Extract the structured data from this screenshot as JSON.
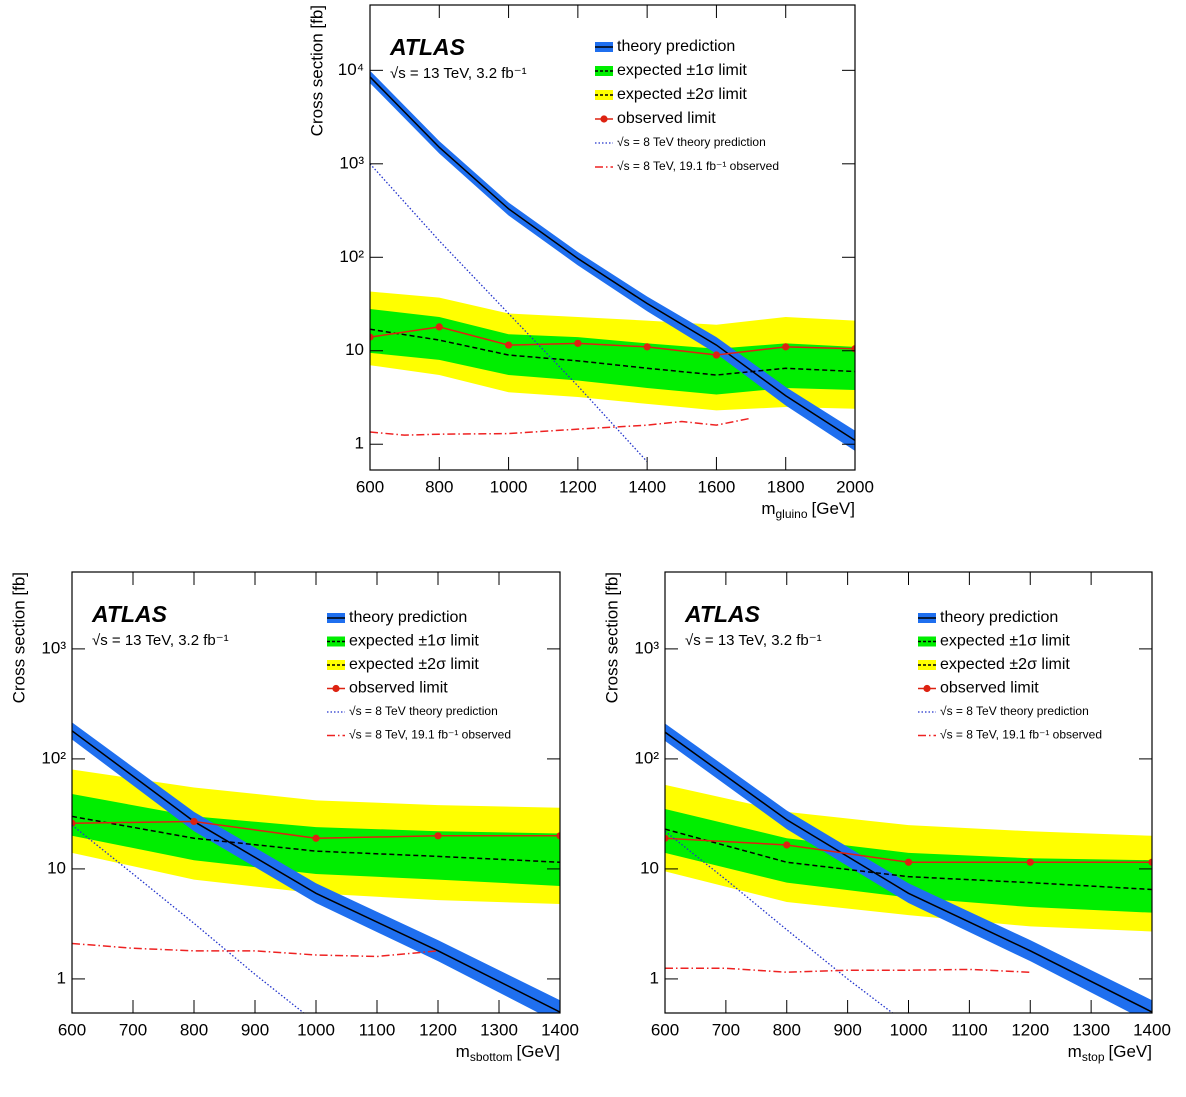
{
  "chart_data": [
    {
      "type": "line",
      "log_y": true,
      "grid": false,
      "legend": "top-right",
      "y_label": "Cross section [fb]",
      "x_label": "m",
      "x_label_subscript": "gluino",
      "x_label_unit": "[GeV]",
      "annotations": [
        "ATLAS",
        "√s = 13 TeV, 3.2 fb⁻¹"
      ],
      "xlim": [
        600,
        2000
      ],
      "xticks": [
        600,
        800,
        1000,
        1200,
        1400,
        1600,
        1800,
        2000
      ],
      "ylim": [
        0.53,
        50000
      ],
      "yticks": [
        1,
        10,
        {
          "value": 100,
          "label": "10²"
        },
        {
          "value": 1000,
          "label": "10³"
        },
        {
          "value": 10000,
          "label": "10⁴"
        }
      ],
      "series": [
        {
          "name": "theory prediction",
          "color": "#1f6fef",
          "line_color": "#000000",
          "line_style": "solid",
          "x": [
            600,
            800,
            1000,
            1200,
            1400,
            1600,
            1800,
            2000
          ],
          "values": [
            8500,
            1500,
            330,
            97,
            32,
            11.5,
            3.3,
            1.1
          ],
          "lower": [
            7300,
            1290,
            280,
            82,
            26.5,
            9.3,
            2.6,
            0.85
          ],
          "upper": [
            9900,
            1750,
            385,
            114,
            38,
            14,
            4.1,
            1.4
          ]
        },
        {
          "name": "expected ±1σ limit",
          "color": "#00ee00",
          "line_color": "#000000",
          "line_style": "dashed",
          "x": [
            600,
            800,
            1000,
            1200,
            1400,
            1600,
            1800,
            2000
          ],
          "values": [
            17,
            13,
            9,
            7.8,
            6.5,
            5.5,
            6.5,
            6
          ],
          "lower": [
            9.5,
            8,
            5.5,
            4.8,
            4,
            3.4,
            4,
            3.8
          ],
          "upper": [
            28,
            23,
            15,
            14,
            12,
            10.5,
            12,
            11
          ]
        },
        {
          "name": "expected ±2σ limit",
          "color": "#ffff00",
          "line_color": "#000000",
          "line_style": "dashed",
          "x": [
            600,
            800,
            1000,
            1200,
            1400,
            1600,
            1800,
            2000
          ],
          "lower": [
            7,
            5.5,
            3.6,
            3.2,
            2.7,
            2.3,
            2.5,
            2.4
          ],
          "upper": [
            43,
            37,
            25,
            23,
            21,
            19,
            23,
            21
          ]
        },
        {
          "name": "observed limit",
          "color": "#dd2211",
          "line_style": "solid",
          "markers": true,
          "x": [
            600,
            800,
            1000,
            1200,
            1400,
            1600,
            1800,
            2000
          ],
          "values": [
            14,
            18,
            11.5,
            12,
            11,
            9,
            11,
            10.5
          ]
        },
        {
          "name": "√s = 8 TeV theory prediction",
          "color": "#2233cc",
          "line_style": "dotted",
          "x": [
            600,
            800,
            1000,
            1200,
            1400
          ],
          "values": [
            1000,
            150,
            25,
            4.2,
            0.65
          ]
        },
        {
          "name": "√s = 8 TeV, 19.1 fb⁻¹ observed",
          "color": "#ee2222",
          "line_style": "dashdot",
          "x": [
            600,
            700,
            800,
            1000,
            1200,
            1400,
            1500,
            1600,
            1700
          ],
          "values": [
            1.35,
            1.25,
            1.28,
            1.3,
            1.45,
            1.6,
            1.75,
            1.6,
            1.9
          ]
        }
      ]
    },
    {
      "type": "line",
      "log_y": true,
      "grid": false,
      "legend": "top-right",
      "y_label": "Cross section [fb]",
      "x_label": "m",
      "x_label_subscript": "sbottom",
      "x_label_unit": "[GeV]",
      "annotations": [
        "ATLAS",
        "√s = 13 TeV, 3.2 fb⁻¹"
      ],
      "xlim": [
        600,
        1400
      ],
      "xticks": [
        600,
        700,
        800,
        900,
        1000,
        1100,
        1200,
        1300,
        1400
      ],
      "ylim": [
        0.49,
        5000
      ],
      "yticks": [
        1,
        10,
        {
          "value": 100,
          "label": "10²"
        },
        {
          "value": 1000,
          "label": "10³"
        }
      ],
      "series": [
        {
          "name": "theory prediction",
          "color": "#1f6fef",
          "line_color": "#000000",
          "line_style": "solid",
          "x": [
            600,
            800,
            1000,
            1200,
            1400
          ],
          "values": [
            180,
            27,
            6,
            1.8,
            0.5
          ],
          "lower": [
            150,
            22,
            4.9,
            1.45,
            0.39
          ],
          "upper": [
            215,
            33,
            7.4,
            2.25,
            0.64
          ]
        },
        {
          "name": "expected ±1σ limit",
          "color": "#00ee00",
          "line_color": "#000000",
          "line_style": "dashed",
          "x": [
            600,
            800,
            1000,
            1200,
            1400
          ],
          "values": [
            30,
            19,
            14.5,
            13,
            11.5
          ],
          "lower": [
            20,
            12,
            9,
            8,
            7
          ],
          "upper": [
            48,
            30,
            24,
            22,
            21
          ]
        },
        {
          "name": "expected ±2σ limit",
          "color": "#ffff00",
          "line_color": "#000000",
          "line_style": "dashed",
          "x": [
            600,
            800,
            1000,
            1200,
            1400
          ],
          "lower": [
            14,
            8,
            6,
            5.2,
            4.8
          ],
          "upper": [
            80,
            55,
            42,
            38,
            36
          ]
        },
        {
          "name": "observed limit",
          "color": "#dd2211",
          "line_style": "solid",
          "markers": true,
          "x": [
            600,
            800,
            1000,
            1200,
            1400
          ],
          "values": [
            26,
            27,
            19,
            20,
            20
          ]
        },
        {
          "name": "√s = 8 TeV theory prediction",
          "color": "#2233cc",
          "line_style": "dotted",
          "x": [
            600,
            700,
            800,
            900,
            1000
          ],
          "values": [
            25,
            9,
            3.2,
            1.1,
            0.4
          ]
        },
        {
          "name": "√s = 8 TeV, 19.1 fb⁻¹ observed",
          "color": "#ee2222",
          "line_style": "dashdot",
          "x": [
            600,
            700,
            800,
            900,
            1000,
            1100,
            1200
          ],
          "values": [
            2.1,
            1.9,
            1.8,
            1.8,
            1.65,
            1.6,
            1.8
          ]
        }
      ]
    },
    {
      "type": "line",
      "log_y": true,
      "grid": false,
      "legend": "top-right",
      "y_label": "Cross section [fb]",
      "x_label": "m",
      "x_label_subscript": "stop",
      "x_label_unit": "[GeV]",
      "annotations": [
        "ATLAS",
        "√s = 13 TeV, 3.2 fb⁻¹"
      ],
      "xlim": [
        600,
        1400
      ],
      "xticks": [
        600,
        700,
        800,
        900,
        1000,
        1100,
        1200,
        1300,
        1400
      ],
      "ylim": [
        0.49,
        5000
      ],
      "yticks": [
        1,
        10,
        {
          "value": 100,
          "label": "10²"
        },
        {
          "value": 1000,
          "label": "10³"
        }
      ],
      "series": [
        {
          "name": "theory prediction",
          "color": "#1f6fef",
          "line_color": "#000000",
          "line_style": "solid",
          "x": [
            600,
            800,
            1000,
            1200,
            1400
          ],
          "values": [
            175,
            28,
            6,
            1.8,
            0.5
          ],
          "lower": [
            146,
            23,
            4.9,
            1.45,
            0.39
          ],
          "upper": [
            210,
            34,
            7.4,
            2.25,
            0.64
          ]
        },
        {
          "name": "expected ±1σ limit",
          "color": "#00ee00",
          "line_color": "#000000",
          "line_style": "dashed",
          "x": [
            600,
            800,
            1000,
            1200,
            1400
          ],
          "values": [
            23,
            11.5,
            8.5,
            7.5,
            6.5
          ],
          "lower": [
            14,
            7.5,
            5.5,
            4.5,
            4
          ],
          "upper": [
            35,
            19,
            14,
            12.5,
            12
          ]
        },
        {
          "name": "expected ±2σ limit",
          "color": "#ffff00",
          "line_color": "#000000",
          "line_style": "dashed",
          "x": [
            600,
            800,
            1000,
            1200,
            1400
          ],
          "lower": [
            9.5,
            5,
            3.8,
            3,
            2.7
          ],
          "upper": [
            58,
            33,
            25,
            22,
            20
          ]
        },
        {
          "name": "observed limit",
          "color": "#dd2211",
          "line_style": "solid",
          "markers": true,
          "x": [
            600,
            800,
            1000,
            1200,
            1400
          ],
          "values": [
            19,
            16.5,
            11.5,
            11.5,
            11.5
          ]
        },
        {
          "name": "√s = 8 TeV theory prediction",
          "color": "#2233cc",
          "line_style": "dotted",
          "x": [
            600,
            700,
            800,
            900,
            1000
          ],
          "values": [
            22,
            8,
            2.8,
            1.0,
            0.38
          ]
        },
        {
          "name": "√s = 8 TeV, 19.1 fb⁻¹ observed",
          "color": "#ee2222",
          "line_style": "dashdot",
          "x": [
            600,
            700,
            800,
            900,
            1000,
            1100,
            1200
          ],
          "values": [
            1.25,
            1.25,
            1.15,
            1.2,
            1.2,
            1.22,
            1.15
          ]
        }
      ]
    }
  ]
}
